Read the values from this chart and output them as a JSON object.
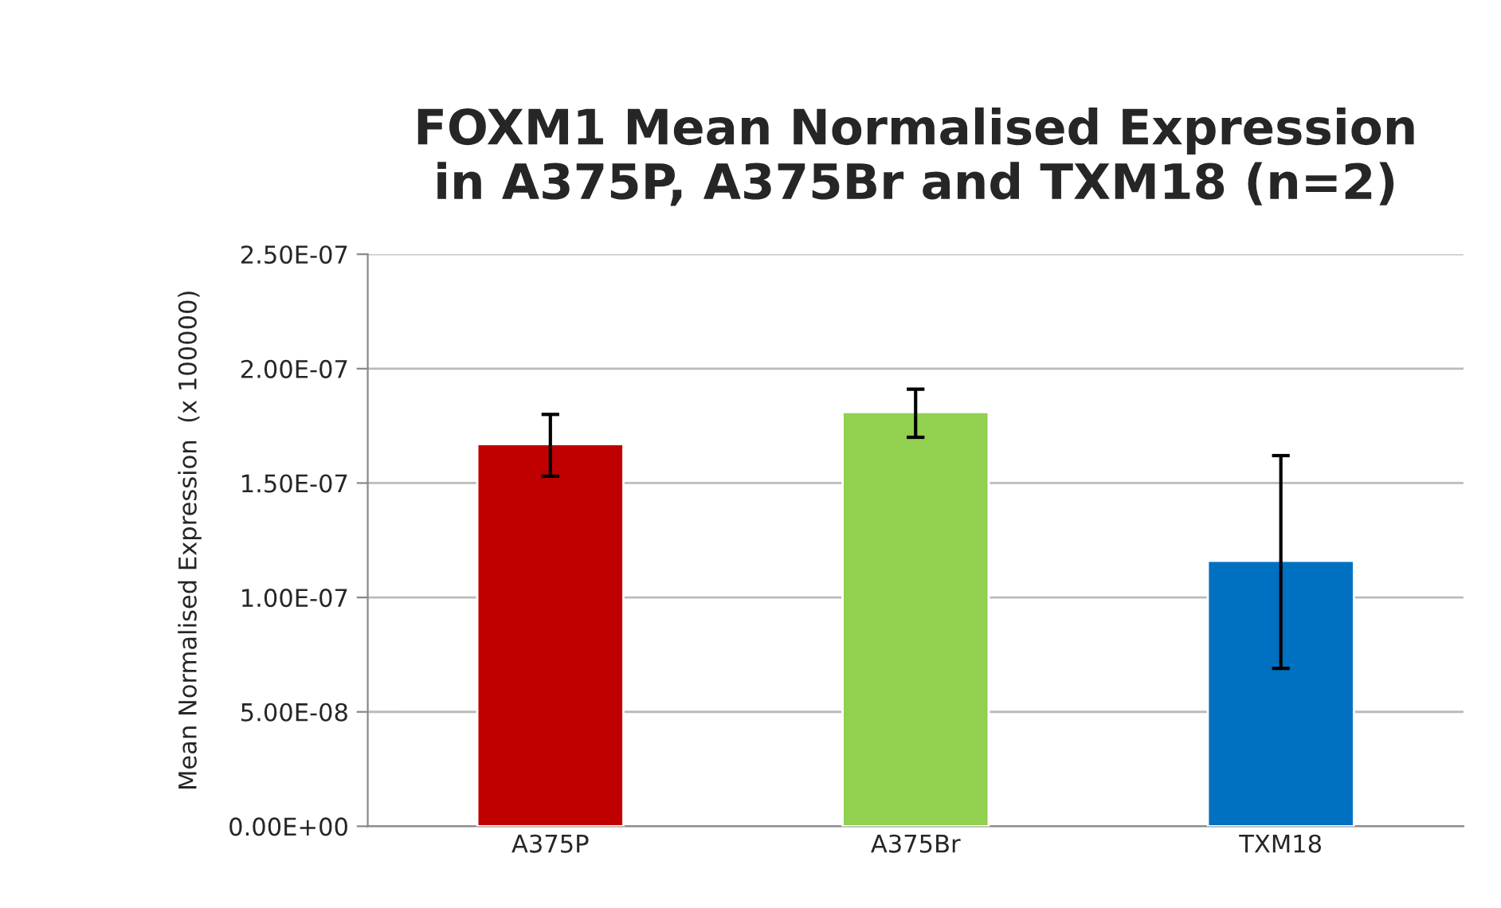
{
  "chart_data": {
    "type": "bar",
    "title": "FOXM1 Mean Normalised Expression\nin A375P, A375Br and TXM18 (n=2)",
    "ylabel": "Mean Normalised Expression  (x 100000)",
    "categories": [
      "A375P",
      "A375Br",
      "TXM18"
    ],
    "values": [
      1.67e-07,
      1.81e-07,
      1.16e-07
    ],
    "colors": [
      "#c00000",
      "#92d050",
      "#0070c0"
    ],
    "errors": [
      [
        1.53e-07,
        1.8e-07
      ],
      [
        1.7e-07,
        1.91e-07
      ],
      [
        6.9e-08,
        1.62e-07
      ]
    ],
    "ylim": [
      0,
      2.5e-07
    ],
    "yticks": [
      {
        "value": 0,
        "label": "0.00E+00"
      },
      {
        "value": 5e-08,
        "label": "5.00E-08"
      },
      {
        "value": 1e-07,
        "label": "1.00E-07"
      },
      {
        "value": 1.5e-07,
        "label": "1.50E-07"
      },
      {
        "value": 2e-07,
        "label": "2.00E-07"
      },
      {
        "value": 2.5e-07,
        "label": "2.50E-07"
      }
    ],
    "grid": "y"
  }
}
